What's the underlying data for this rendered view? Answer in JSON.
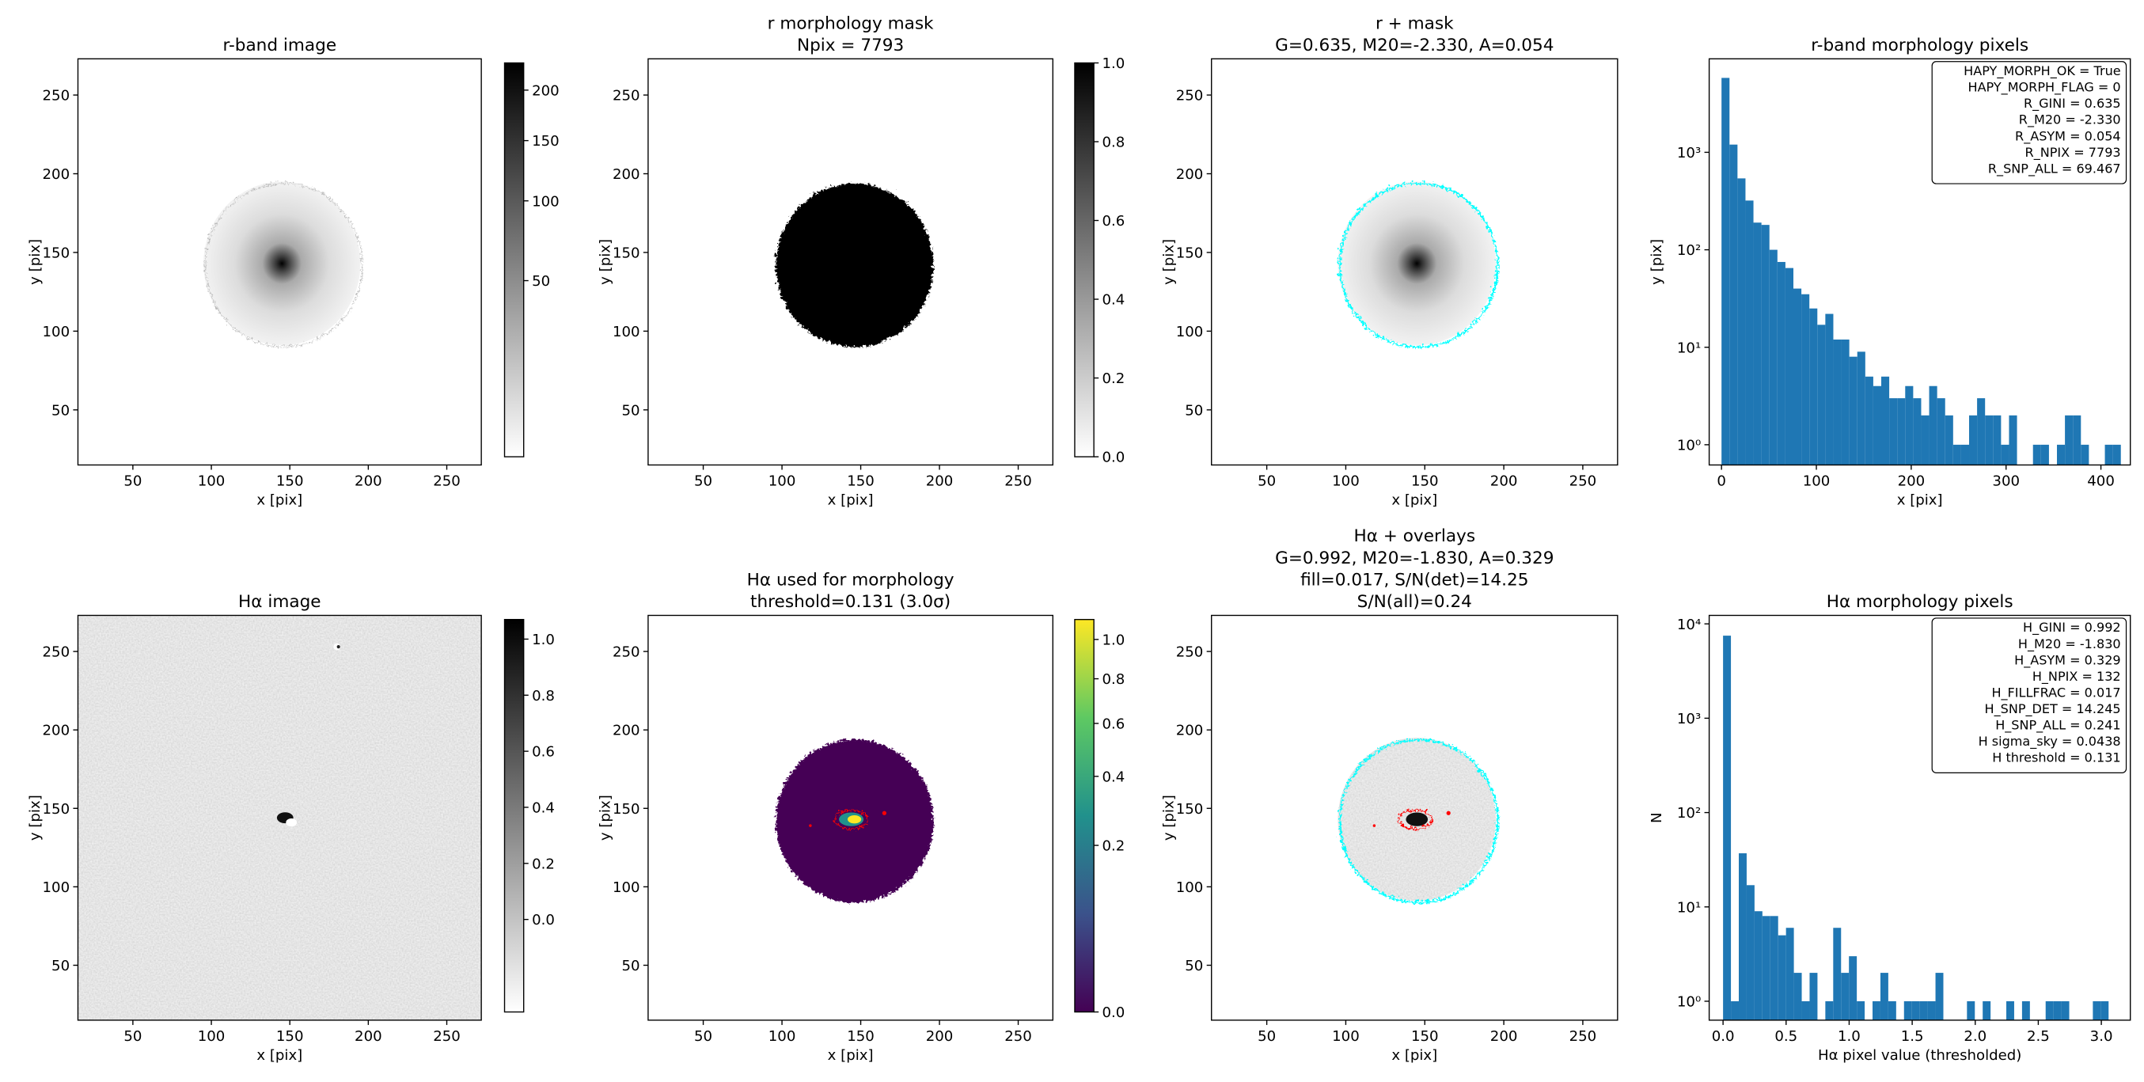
{
  "chart_data": [
    {
      "type": "image",
      "title": [
        "r-band image"
      ],
      "xlabel": "x [pix]",
      "ylabel": "y [pix]",
      "xlim": [
        15,
        272
      ],
      "ylim": [
        15,
        273
      ],
      "xticks": [
        50,
        100,
        150,
        200,
        250
      ],
      "yticks": [
        50,
        100,
        150,
        200,
        250
      ],
      "colorbar": {
        "cmap": "gray_r",
        "norm": "sqrt",
        "clim": [
          5,
          230
        ],
        "ticks": [
          50,
          100,
          150,
          200
        ]
      }
    },
    {
      "type": "image",
      "title": [
        "r morphology mask",
        "Npix = 7793"
      ],
      "xlabel": "x [pix]",
      "ylabel": "y [pix]",
      "xlim": [
        15,
        272
      ],
      "ylim": [
        15,
        273
      ],
      "xticks": [
        50,
        100,
        150,
        200,
        250
      ],
      "yticks": [
        50,
        100,
        150,
        200,
        250
      ],
      "colorbar": {
        "cmap": "gray_r",
        "norm": "linear",
        "clim": [
          0,
          1
        ],
        "ticks": [
          {
            "value": 0,
            "label": "0.0"
          },
          0.2,
          0.4,
          0.6,
          0.8,
          {
            "value": 1,
            "label": "1.0"
          }
        ]
      }
    },
    {
      "type": "image",
      "title": [
        "r + mask",
        "G=0.635, M20=-2.330, A=0.054"
      ],
      "xlabel": "x [pix]",
      "ylabel": "y [pix]",
      "xlim": [
        15,
        272
      ],
      "ylim": [
        15,
        273
      ],
      "xticks": [
        50,
        100,
        150,
        200,
        250
      ],
      "yticks": [
        50,
        100,
        150,
        200,
        250
      ]
    },
    {
      "type": "histogram",
      "title": [
        "r-band morphology pixels"
      ],
      "xlabel": "x [pix]",
      "ylabel": "y [pix]",
      "color": "#1f77b4",
      "log_y": true,
      "xlim": [
        -13,
        431
      ],
      "ylim": [
        0.62,
        9100
      ],
      "xticks": [
        0,
        100,
        200,
        300,
        400
      ],
      "yticks": [
        {
          "value": 1,
          "label": "10⁰"
        },
        {
          "value": 10,
          "label": "10¹"
        },
        {
          "value": 100,
          "label": "10²"
        },
        {
          "value": 1000,
          "label": "10³"
        }
      ],
      "bins": [
        0,
        8.42,
        16.84,
        25.26,
        33.68,
        42.1,
        50.52,
        58.94,
        67.36,
        75.78,
        84.2,
        92.62,
        101.04,
        109.46,
        117.88,
        126.3,
        134.72,
        143.14,
        151.56,
        159.98,
        168.4,
        176.82,
        185.24,
        193.66,
        202.08,
        210.5,
        218.92,
        227.34,
        235.76,
        244.18,
        252.6,
        261.02,
        269.44,
        277.86,
        286.28,
        294.7,
        303.12,
        311.54,
        319.96,
        328.38,
        336.8,
        345.22,
        353.64,
        362.06,
        370.48,
        378.9,
        387.32,
        395.74,
        404.16,
        412.58,
        421
      ],
      "counts": [
        5800,
        1200,
        540,
        320,
        190,
        180,
        100,
        75,
        65,
        40,
        35,
        25,
        17,
        22,
        12,
        12,
        8,
        9,
        5,
        4,
        5,
        3,
        3,
        4,
        3,
        2,
        4,
        3,
        2,
        1,
        1,
        2,
        3,
        2,
        2,
        1,
        2,
        0,
        0,
        1,
        1,
        0,
        1,
        2,
        2,
        1,
        0,
        0,
        1,
        1
      ],
      "text_box": [
        "HAPY_MORPH_OK = True",
        "HAPY_MORPH_FLAG = 0",
        "R_GINI = 0.635",
        "R_M20 = -2.330",
        "R_ASYM = 0.054",
        "R_NPIX = 7793",
        "R_SNP_ALL = 69.467"
      ]
    },
    {
      "type": "image",
      "title": [
        "Hα image"
      ],
      "xlabel": "x [pix]",
      "ylabel": "y [pix]",
      "xlim": [
        15,
        272
      ],
      "ylim": [
        15,
        273
      ],
      "xticks": [
        50,
        100,
        150,
        200,
        250
      ],
      "yticks": [
        50,
        100,
        150,
        200,
        250
      ],
      "colorbar": {
        "cmap": "gray_r",
        "norm": "linear",
        "clim": [
          -0.33,
          1.07
        ],
        "ticks": [
          {
            "value": 0,
            "label": "0.0"
          },
          0.2,
          0.4,
          0.6,
          0.8,
          {
            "value": 1,
            "label": "1.0"
          }
        ]
      }
    },
    {
      "type": "image",
      "title": [
        "Hα used for morphology",
        "threshold=0.131 (3.0σ)"
      ],
      "xlabel": "x [pix]",
      "ylabel": "y [pix]",
      "xlim": [
        15,
        272
      ],
      "ylim": [
        15,
        273
      ],
      "xticks": [
        50,
        100,
        150,
        200,
        250
      ],
      "yticks": [
        50,
        100,
        150,
        200,
        250
      ],
      "colorbar": {
        "cmap": "viridis",
        "norm": "sqrt",
        "clim": [
          0,
          1.11
        ],
        "ticks": [
          {
            "value": 0,
            "label": "0.0"
          },
          0.2,
          0.4,
          0.6,
          0.8,
          {
            "value": 1,
            "label": "1.0"
          }
        ]
      }
    },
    {
      "type": "image",
      "title": [
        "Hα + overlays",
        "G=0.992, M20=-1.830, A=0.329",
        "fill=0.017, S/N(det)=14.25",
        "S/N(all)=0.24"
      ],
      "xlabel": "x [pix]",
      "ylabel": "y [pix]",
      "xlim": [
        15,
        272
      ],
      "ylim": [
        15,
        273
      ],
      "xticks": [
        50,
        100,
        150,
        200,
        250
      ],
      "yticks": [
        50,
        100,
        150,
        200,
        250
      ]
    },
    {
      "type": "histogram",
      "title": [
        "Hα morphology pixels"
      ],
      "xlabel": "Hα pixel value (thresholded)",
      "ylabel": "N",
      "color": "#1f77b4",
      "log_y": true,
      "xlim": [
        -0.11,
        3.23
      ],
      "ylim": [
        0.63,
        12300
      ],
      "xticks": [
        {
          "value": 0,
          "label": "0.0"
        },
        0.5,
        {
          "value": 1,
          "label": "1.0"
        },
        1.5,
        {
          "value": 2,
          "label": "2.0"
        },
        2.5,
        {
          "value": 3,
          "label": "3.0"
        }
      ],
      "yticks": [
        {
          "value": 1,
          "label": "10⁰"
        },
        {
          "value": 10,
          "label": "10¹"
        },
        {
          "value": 100,
          "label": "10²"
        },
        {
          "value": 1000,
          "label": "10³"
        },
        {
          "value": 10000,
          "label": "10⁴"
        }
      ],
      "bins": [
        0,
        0.0624,
        0.1248,
        0.1872,
        0.2496,
        0.312,
        0.3744,
        0.4368,
        0.4992,
        0.5616,
        0.624,
        0.6864,
        0.7488,
        0.8112,
        0.8736,
        0.936,
        0.9984,
        1.0608,
        1.1232,
        1.1856,
        1.248,
        1.3104,
        1.3728,
        1.4352,
        1.4976,
        1.56,
        1.6224,
        1.6848,
        1.7472,
        1.8096,
        1.872,
        1.9344,
        1.9968,
        2.0592,
        2.1216,
        2.184,
        2.2464,
        2.3088,
        2.3712,
        2.4336,
        2.496,
        2.5584,
        2.6208,
        2.6832,
        2.7456,
        2.808,
        2.8704,
        2.9328,
        2.9952,
        3.0576,
        3.12
      ],
      "counts": [
        7500,
        1,
        37,
        17,
        9,
        8,
        8,
        5,
        6,
        2,
        1,
        2,
        0,
        1,
        6,
        2,
        3,
        1,
        0,
        1,
        2,
        1,
        0,
        1,
        1,
        1,
        1,
        2,
        0,
        0,
        0,
        1,
        0,
        1,
        0,
        0,
        1,
        0,
        1,
        0,
        0,
        1,
        1,
        1,
        0,
        0,
        0,
        1,
        1,
        0
      ],
      "text_box": [
        "H_GINI = 0.992",
        "H_M20 = -1.830",
        "H_ASYM = 0.329",
        "H_NPIX = 132",
        "H_FILLFRAC = 0.017",
        "H_SNP_DET = 14.245",
        "H_SNP_ALL = 0.241",
        "H sigma_sky = 0.0438",
        "H threshold = 0.131"
      ]
    }
  ]
}
